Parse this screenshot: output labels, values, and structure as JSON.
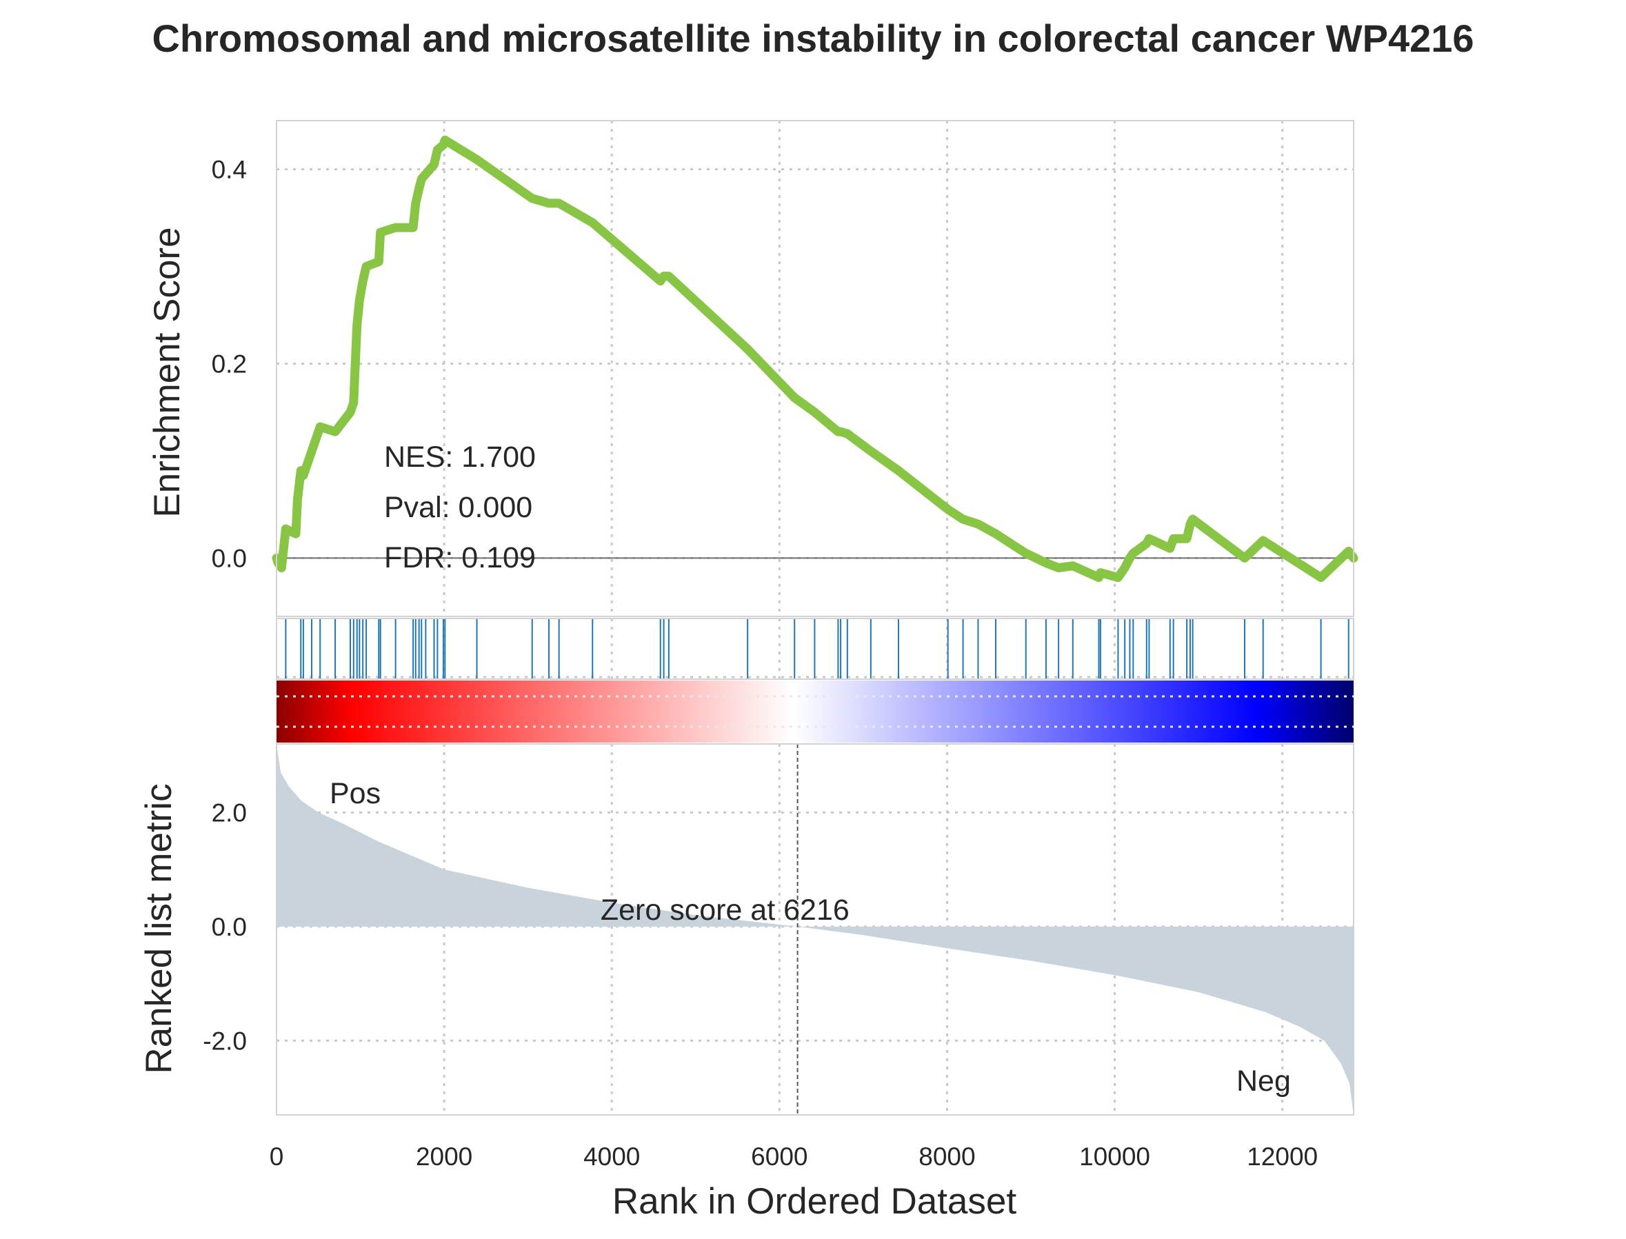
{
  "chart_data": {
    "type": "line",
    "title": "Chromosomal and microsatellite instability in colorectal cancer  WP4216",
    "xlabel": "Rank in Ordered Dataset",
    "xlim": [
      0,
      12850
    ],
    "x_ticks": [
      "0",
      "2000",
      "4000",
      "6000",
      "8000",
      "10000",
      "12000"
    ],
    "x_tick_values": [
      0,
      2000,
      4000,
      6000,
      8000,
      10000,
      12000
    ],
    "enrichment_panel": {
      "ylabel": "Enrichment Score",
      "ylim": [
        -0.06,
        0.45
      ],
      "y_ticks": [
        "0.0",
        "0.2",
        "0.4"
      ],
      "y_tick_values": [
        0.0,
        0.2,
        0.4
      ],
      "line_color": "#88c544",
      "stats": {
        "nes": "NES: 1.700",
        "pval": "Pval: 0.000",
        "fdr": "FDR: 0.109"
      },
      "hit_ranks": [
        110,
        290,
        320,
        420,
        520,
        700,
        880,
        920,
        960,
        990,
        1030,
        1070,
        1220,
        1240,
        1420,
        1630,
        1660,
        1700,
        1730,
        1780,
        1880,
        1920,
        1990,
        2010,
        2390,
        3050,
        3250,
        3370,
        3770,
        4580,
        4620,
        4680,
        5620,
        6180,
        6420,
        6700,
        6730,
        6810,
        7090,
        7420,
        8010,
        8190,
        8370,
        8580,
        8940,
        9180,
        9330,
        9500,
        9810,
        9830,
        10040,
        10120,
        10180,
        10220,
        10380,
        10410,
        10660,
        10700,
        10860,
        10900,
        10930,
        11550,
        11770,
        12460,
        12790
      ],
      "series": [
        {
          "x": [
            0,
            20,
            60,
            110,
            230,
            250,
            290,
            320,
            420,
            520,
            700,
            880,
            920,
            960,
            990,
            1030,
            1070,
            1220,
            1240,
            1420,
            1630,
            1660,
            1700,
            1730,
            1780,
            1880,
            1920,
            1990,
            2010,
            2390,
            3050,
            3250,
            3370,
            3770,
            4580,
            4620,
            4680,
            5620,
            6180,
            6420,
            6700,
            6730,
            6810,
            7090,
            7420,
            8010,
            8190,
            8370,
            8580,
            8940,
            9180,
            9330,
            9500,
            9810,
            9830,
            10040,
            10120,
            10180,
            10220,
            10380,
            10410,
            10660,
            10700,
            10860,
            10900,
            10930,
            11550,
            11770,
            12460,
            12790,
            12850
          ],
          "y": [
            0.0,
            -0.005,
            -0.01,
            0.03,
            0.025,
            0.06,
            0.09,
            0.085,
            0.11,
            0.135,
            0.13,
            0.15,
            0.16,
            0.24,
            0.265,
            0.285,
            0.3,
            0.305,
            0.335,
            0.34,
            0.34,
            0.365,
            0.38,
            0.39,
            0.395,
            0.405,
            0.42,
            0.425,
            0.43,
            0.41,
            0.37,
            0.365,
            0.365,
            0.345,
            0.285,
            0.29,
            0.29,
            0.215,
            0.165,
            0.15,
            0.13,
            0.13,
            0.128,
            0.11,
            0.09,
            0.05,
            0.04,
            0.035,
            0.025,
            0.005,
            -0.005,
            -0.01,
            -0.008,
            -0.02,
            -0.015,
            -0.02,
            -0.01,
            0.0,
            0.005,
            0.015,
            0.02,
            0.01,
            0.02,
            0.02,
            0.035,
            0.04,
            0.0,
            0.018,
            -0.02,
            0.007,
            0.0
          ]
        }
      ]
    },
    "ranked_panel": {
      "ylabel": "Ranked list metric",
      "ylim": [
        -3.3,
        3.2
      ],
      "y_ticks": [
        "2.0",
        "0.0",
        "-2.0"
      ],
      "y_tick_values": [
        2.0,
        0.0,
        -2.0
      ],
      "fill_color": "#c9d3dc",
      "pos_label": "Pos",
      "neg_label": "Neg",
      "pos_color": "#ff0000",
      "neg_color": "#0000ff",
      "zero_score_text": "Zero score at 6216",
      "zero_cross_rank": 6216,
      "metric_curve": {
        "x": [
          0,
          50,
          150,
          300,
          500,
          800,
          1200,
          2000,
          3000,
          4000,
          5000,
          6216,
          7000,
          8000,
          9000,
          10000,
          11000,
          11800,
          12200,
          12500,
          12700,
          12800,
          12850
        ],
        "y": [
          3.2,
          2.7,
          2.45,
          2.2,
          2.0,
          1.8,
          1.5,
          1.0,
          0.68,
          0.42,
          0.2,
          0.0,
          -0.15,
          -0.38,
          -0.6,
          -0.85,
          -1.15,
          -1.5,
          -1.75,
          -2.0,
          -2.4,
          -2.75,
          -3.3
        ]
      }
    },
    "colorbar": {
      "stops": [
        "#8b0000",
        "#ff0000",
        "#ffffff",
        "#0000ff",
        "#00006b"
      ]
    },
    "grid": true
  }
}
